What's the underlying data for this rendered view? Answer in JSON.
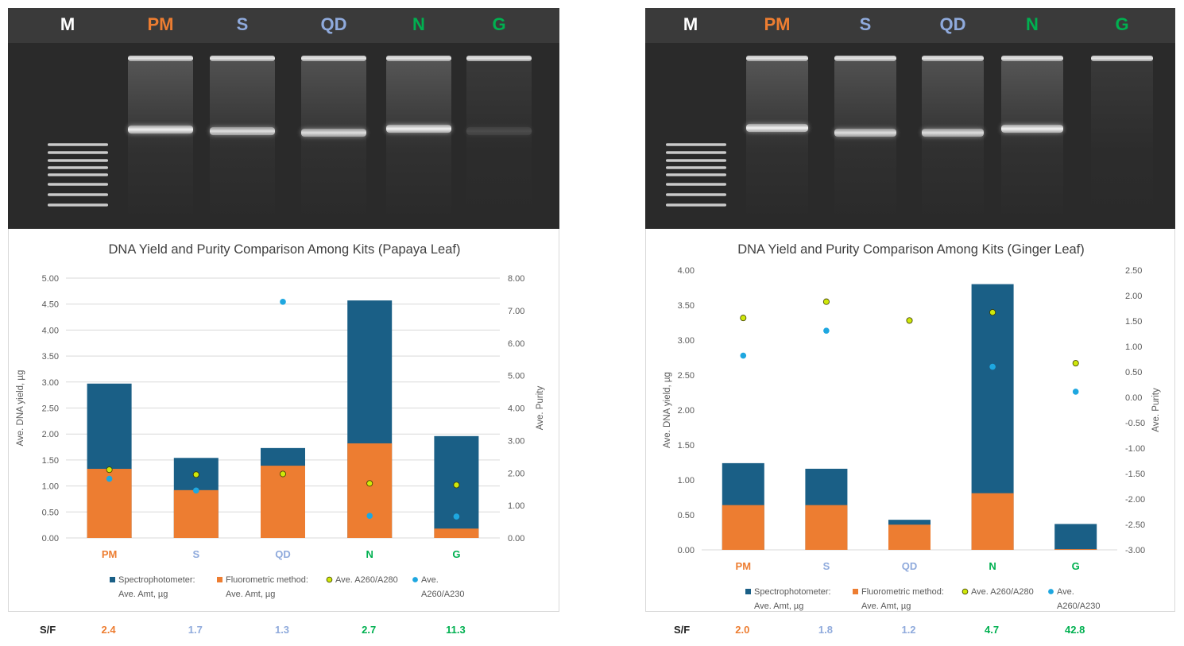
{
  "colors": {
    "PM": "#ed7d31",
    "S": "#8faadc",
    "QD": "#8faadc",
    "N": "#00b050",
    "G": "#00b050",
    "M": "#ffffff",
    "spectro": "#1a5f86",
    "fluoro": "#ed7d31",
    "a280": "#cfe80a",
    "a230": "#1ea7e0"
  },
  "gels": [
    {
      "lanes": [
        "M",
        "PM",
        "S",
        "QD",
        "N",
        "G"
      ],
      "main_band_intensity": [
        1.0,
        0.9,
        0.9,
        1.0,
        0.15
      ]
    },
    {
      "lanes": [
        "M",
        "PM",
        "S",
        "QD",
        "N",
        "G"
      ],
      "main_band_intensity": [
        1.0,
        0.9,
        0.9,
        1.0,
        0.0
      ]
    }
  ],
  "chart_data": [
    {
      "type": "bar",
      "title": "DNA Yield and Purity Comparison Among Kits (Papaya Leaf)",
      "categories": [
        "PM",
        "S",
        "QD",
        "N",
        "G"
      ],
      "ylabel": "Ave. DNA yield, µg",
      "y2label": "Ave. Purity",
      "ylim": [
        0,
        5
      ],
      "y2lim": [
        0,
        8
      ],
      "yticks": [
        "0.00",
        "0.50",
        "1.00",
        "1.50",
        "2.00",
        "2.50",
        "3.00",
        "3.50",
        "4.00",
        "4.50",
        "5.00"
      ],
      "y2ticks": [
        "0.00",
        "1.00",
        "2.00",
        "3.00",
        "4.00",
        "5.00",
        "6.00",
        "7.00",
        "8.00"
      ],
      "grid": true,
      "legend_position": "bottom",
      "series": [
        {
          "name": "Spectrophotometer: Ave. Amt, µg",
          "legend_lines": [
            "Spectrophotometer:",
            "Ave. Amt, µg"
          ],
          "kind": "bar",
          "axis": "left",
          "values": [
            2.97,
            1.54,
            1.73,
            4.57,
            1.96
          ]
        },
        {
          "name": "Fluorometric method: Ave. Amt, µg",
          "legend_lines": [
            "Fluorometric method:",
            "Ave. Amt, µg"
          ],
          "kind": "bar",
          "axis": "left",
          "values": [
            1.33,
            0.92,
            1.39,
            1.82,
            0.18
          ]
        },
        {
          "name": "Ave. A260/A280",
          "legend_lines": [
            "Ave. A260/A280"
          ],
          "kind": "marker",
          "axis": "right",
          "values": [
            2.1,
            1.95,
            1.97,
            1.68,
            1.63
          ]
        },
        {
          "name": "Ave. A260/A230",
          "legend_lines": [
            "Ave.",
            "A260/A230"
          ],
          "kind": "marker",
          "axis": "right",
          "values": [
            1.82,
            1.46,
            7.27,
            0.68,
            0.66
          ]
        }
      ],
      "sf": {
        "label": "S/F",
        "values": [
          "2.4",
          "1.7",
          "1.3",
          "2.7",
          "11.3"
        ]
      }
    },
    {
      "type": "bar",
      "title": "DNA Yield and Purity Comparison Among Kits (Ginger Leaf)",
      "categories": [
        "PM",
        "S",
        "QD",
        "N",
        "G"
      ],
      "ylabel": "Ave. DNA yield, µg",
      "y2label": "Ave. Purity",
      "ylim": [
        0,
        4
      ],
      "y2lim": [
        -3,
        2.5
      ],
      "yticks": [
        "0.00",
        "0.50",
        "1.00",
        "1.50",
        "2.00",
        "2.50",
        "3.00",
        "3.50",
        "4.00"
      ],
      "y2ticks": [
        "-3.00",
        "-2.50",
        "-2.00",
        "-1.50",
        "-1.00",
        "-0.50",
        "0.00",
        "0.50",
        "1.00",
        "1.50",
        "2.00",
        "2.50"
      ],
      "grid": false,
      "legend_position": "bottom",
      "series": [
        {
          "name": "Spectrophotometer: Ave. Amt, µg",
          "legend_lines": [
            "Spectrophotometer:",
            "Ave. Amt, µg"
          ],
          "kind": "bar",
          "axis": "left",
          "values": [
            1.24,
            1.16,
            0.43,
            3.8,
            0.37
          ]
        },
        {
          "name": "Fluorometric method: Ave. Amt, µg",
          "legend_lines": [
            "Fluorometric method:",
            "Ave. Amt, µg"
          ],
          "kind": "bar",
          "axis": "left",
          "values": [
            0.64,
            0.64,
            0.36,
            0.81,
            0.01
          ]
        },
        {
          "name": "Ave. A260/A280",
          "legend_lines": [
            "Ave. A260/A280"
          ],
          "kind": "marker",
          "axis": "right",
          "values": [
            1.56,
            1.88,
            1.51,
            1.67,
            0.67
          ]
        },
        {
          "name": "Ave. A260/A230",
          "legend_lines": [
            "Ave.",
            "A260/A230"
          ],
          "kind": "marker",
          "axis": "right",
          "values": [
            0.82,
            1.31,
            null,
            0.6,
            0.11
          ]
        }
      ],
      "sf": {
        "label": "S/F",
        "values": [
          "2.0",
          "1.8",
          "1.2",
          "4.7",
          "42.8"
        ]
      }
    }
  ]
}
